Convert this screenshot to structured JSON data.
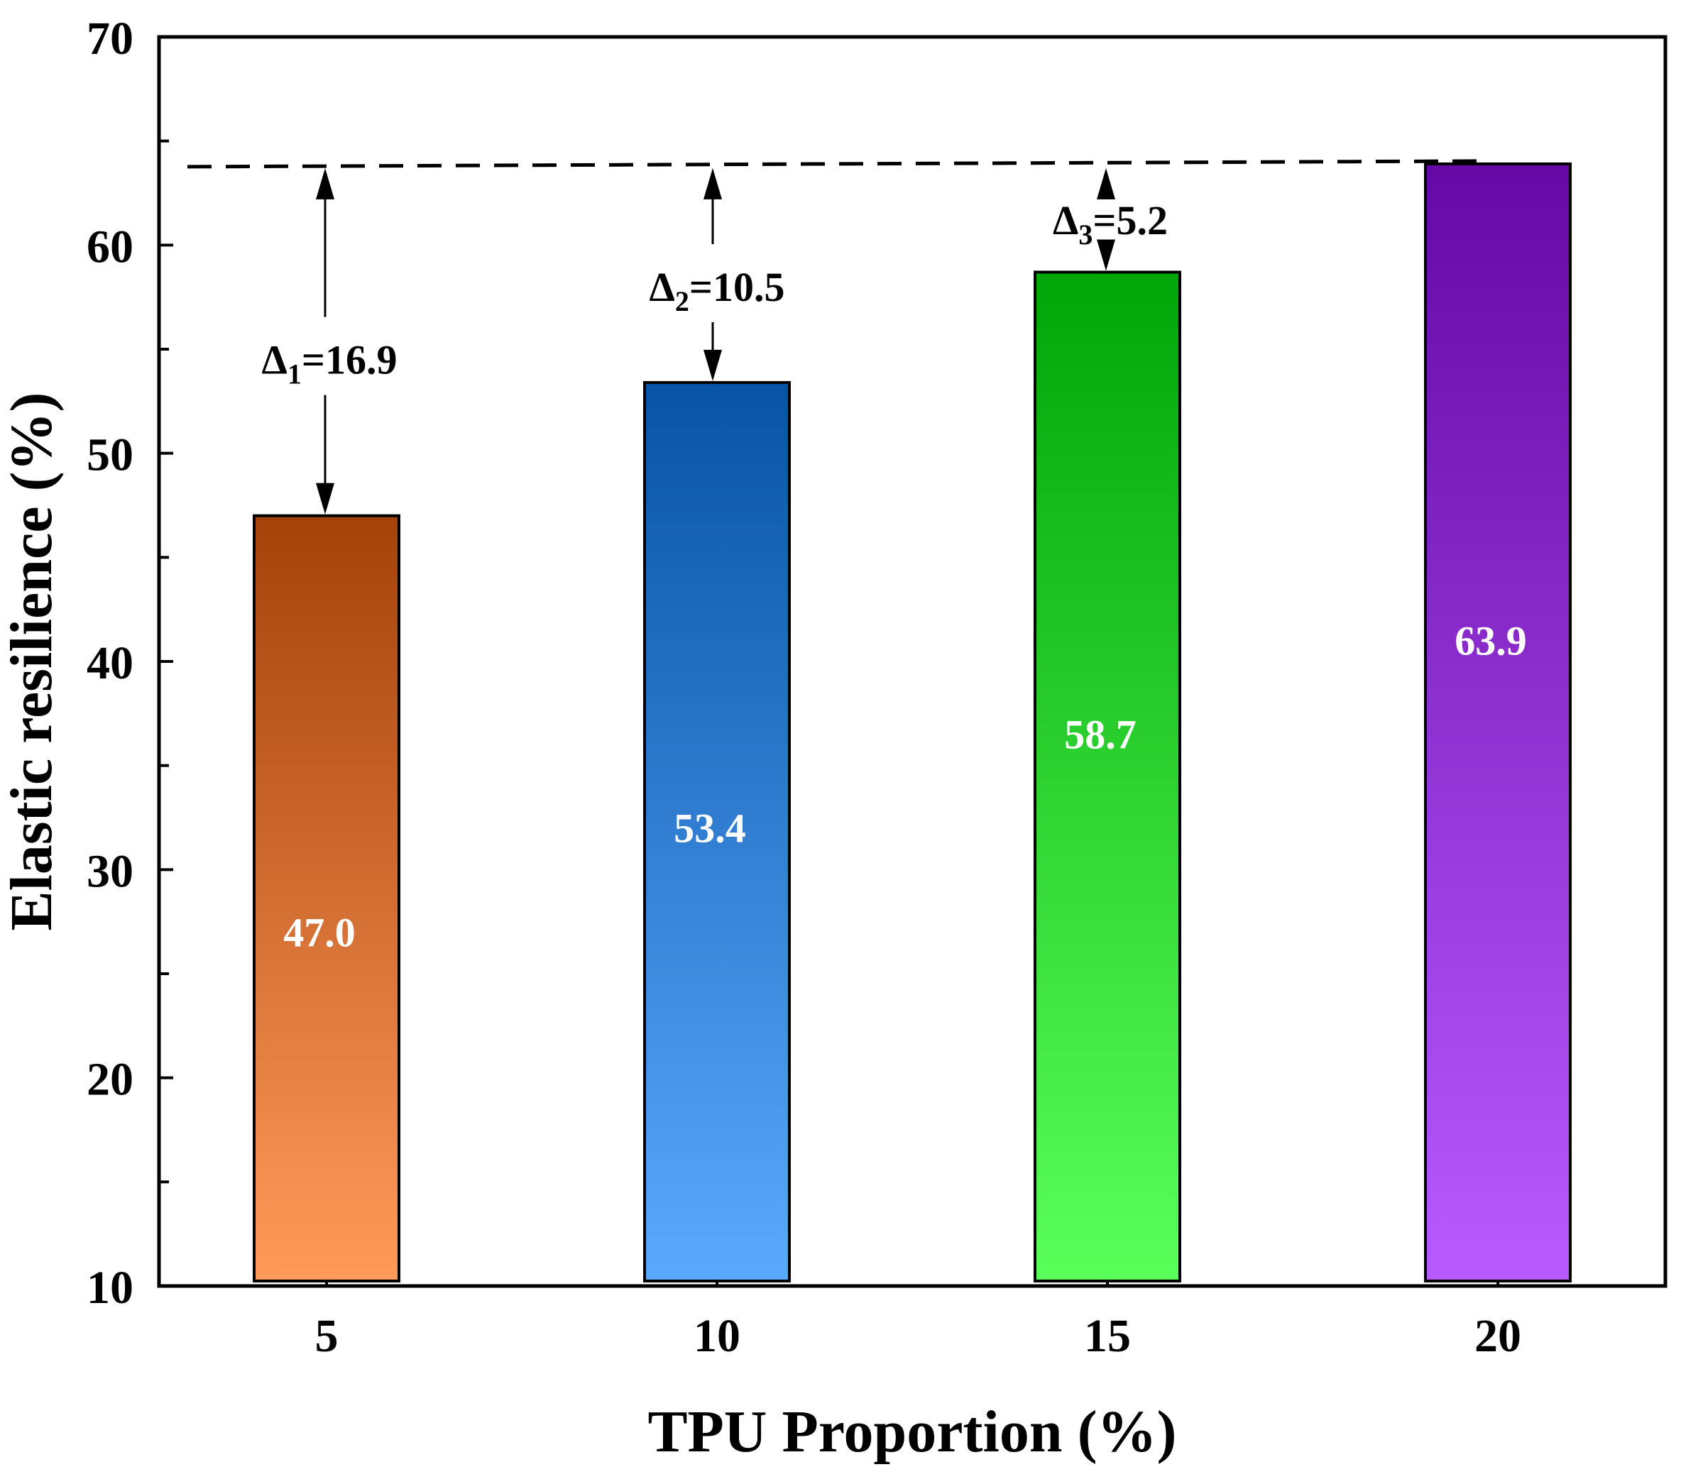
{
  "chart_data": {
    "type": "bar",
    "title": "",
    "xlabel": "TPU Proportion (%)",
    "ylabel": "Elastic resilience (%)",
    "ylim": [
      10,
      70
    ],
    "yticks": [
      10,
      20,
      30,
      40,
      50,
      60,
      70
    ],
    "yminor_step": 5,
    "categories": [
      "5",
      "10",
      "15",
      "20"
    ],
    "values": [
      47.0,
      53.4,
      58.7,
      63.9
    ],
    "value_labels": [
      "47.0",
      "53.4",
      "58.7",
      "63.9"
    ],
    "bar_colors": [
      {
        "top": "#a5420a",
        "bottom": "#ff9a5a"
      },
      {
        "top": "#0853a5",
        "bottom": "#5aa9ff"
      },
      {
        "top": "#00a508",
        "bottom": "#5aff5a"
      },
      {
        "top": "#6608a5",
        "bottom": "#b95aff"
      }
    ],
    "bar_label_values": [
      27,
      32,
      36.5,
      41
    ],
    "reference_line": {
      "value": 63.9,
      "style": "dashed"
    },
    "annotations": [
      {
        "symbol": "Δ",
        "sub": "1",
        "text": "=16.9",
        "category": "5",
        "from": 47.0,
        "to": 63.9,
        "label_at": 54.5
      },
      {
        "symbol": "Δ",
        "sub": "2",
        "text": "=10.5",
        "category": "10",
        "from": 53.4,
        "to": 63.9,
        "label_at": 58.0
      },
      {
        "symbol": "Δ",
        "sub": "3",
        "text": "=5.2",
        "category": "15",
        "from": 58.7,
        "to": 63.9,
        "label_at": 61.2
      }
    ]
  }
}
